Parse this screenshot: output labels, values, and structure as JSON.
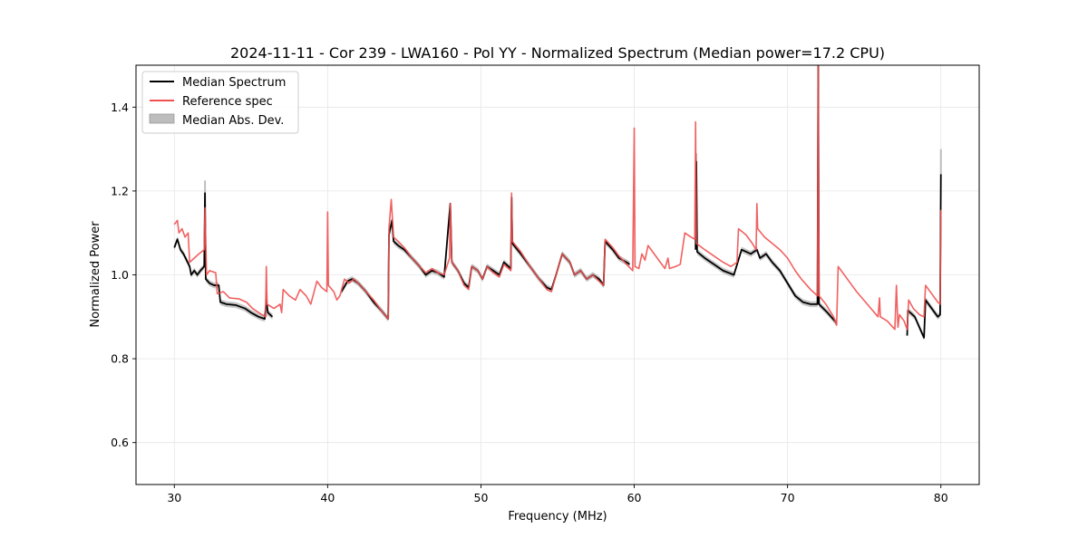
{
  "chart_data": {
    "type": "line",
    "title": "2024-11-11 - Cor 239 - LWA160 - Pol YY - Normalized Spectrum (Median power=17.2 CPU)",
    "xlabel": "Frequency (MHz)",
    "ylabel": "Normalized Power",
    "xlim": [
      27.5,
      82.5
    ],
    "ylim": [
      0.5,
      1.5
    ],
    "xticks": [
      30,
      40,
      50,
      60,
      70,
      80
    ],
    "yticks": [
      0.6,
      0.8,
      1.0,
      1.2,
      1.4
    ],
    "xtick_labels": [
      "30",
      "40",
      "50",
      "60",
      "70",
      "80"
    ],
    "ytick_labels": [
      "0.6",
      "0.8",
      "1.0",
      "1.2",
      "1.4"
    ],
    "grid": true,
    "legend_position": "top-left",
    "legend": [
      "Median Spectrum",
      "Reference spec",
      "Median Abs. Dev."
    ],
    "colors": {
      "median": "#000000",
      "reference": "#f05050",
      "overlap": "#800000",
      "mad": "#bdbdbd"
    },
    "series": [
      {
        "name": "Median Spectrum",
        "segments": [
          [
            [
              30.0,
              1.065
            ],
            [
              30.2,
              1.085
            ],
            [
              30.4,
              1.06
            ],
            [
              30.6,
              1.05
            ],
            [
              30.8,
              1.035
            ],
            [
              31.0,
              1.02
            ],
            [
              31.1,
              1.0
            ],
            [
              31.3,
              1.01
            ],
            [
              31.5,
              1.0
            ],
            [
              31.7,
              1.01
            ],
            [
              31.95,
              1.02
            ],
            [
              32.0,
              1.195
            ],
            [
              32.05,
              0.99
            ],
            [
              32.3,
              0.98
            ],
            [
              32.6,
              0.975
            ],
            [
              32.9,
              0.975
            ],
            [
              33.0,
              0.935
            ],
            [
              33.4,
              0.93
            ],
            [
              34.0,
              0.928
            ],
            [
              34.6,
              0.92
            ],
            [
              35.0,
              0.91
            ],
            [
              35.5,
              0.9
            ],
            [
              35.9,
              0.895
            ],
            [
              36.0,
              0.94
            ],
            [
              36.1,
              0.91
            ],
            [
              36.4,
              0.9
            ]
          ],
          [
            [
              40.9,
              0.96
            ],
            [
              41.3,
              0.985
            ],
            [
              41.6,
              0.99
            ],
            [
              42.0,
              0.98
            ],
            [
              42.5,
              0.96
            ],
            [
              43.0,
              0.935
            ],
            [
              43.5,
              0.915
            ],
            [
              43.95,
              0.895
            ],
            [
              44.0,
              1.095
            ],
            [
              44.2,
              1.13
            ],
            [
              44.3,
              1.08
            ],
            [
              44.6,
              1.07
            ],
            [
              45.0,
              1.06
            ],
            [
              45.5,
              1.04
            ],
            [
              46.0,
              1.02
            ],
            [
              46.4,
              1.0
            ],
            [
              46.8,
              1.01
            ],
            [
              47.2,
              1.005
            ],
            [
              47.6,
              0.995
            ],
            [
              48.0,
              1.17
            ],
            [
              48.1,
              1.03
            ],
            [
              48.5,
              1.01
            ],
            [
              48.9,
              0.98
            ],
            [
              49.2,
              0.97
            ],
            [
              49.4,
              1.02
            ],
            [
              49.8,
              1.01
            ],
            [
              50.1,
              0.99
            ],
            [
              50.4,
              1.02
            ],
            [
              50.8,
              1.01
            ],
            [
              51.2,
              1.0
            ],
            [
              51.5,
              1.03
            ],
            [
              51.95,
              1.015
            ],
            [
              52.0,
              1.185
            ],
            [
              52.05,
              1.075
            ],
            [
              52.6,
              1.05
            ],
            [
              53.2,
              1.02
            ],
            [
              53.8,
              0.99
            ],
            [
              54.3,
              0.97
            ],
            [
              54.6,
              0.965
            ],
            [
              54.9,
              1.0
            ],
            [
              55.3,
              1.05
            ],
            [
              55.8,
              1.03
            ],
            [
              56.1,
              1.0
            ],
            [
              56.5,
              1.01
            ],
            [
              56.9,
              0.99
            ],
            [
              57.3,
              1.0
            ],
            [
              57.7,
              0.99
            ],
            [
              58.0,
              0.975
            ],
            [
              58.1,
              1.08
            ],
            [
              58.6,
              1.06
            ],
            [
              59.0,
              1.04
            ],
            [
              59.5,
              1.03
            ],
            [
              59.7,
              1.025
            ]
          ],
          [
            [
              64.0,
              1.06
            ],
            [
              64.05,
              1.27
            ],
            [
              64.1,
              1.055
            ],
            [
              64.6,
              1.04
            ],
            [
              65.2,
              1.025
            ],
            [
              65.8,
              1.01
            ],
            [
              66.5,
              1.0
            ],
            [
              67.0,
              1.06
            ],
            [
              67.6,
              1.05
            ],
            [
              68.0,
              1.06
            ],
            [
              68.2,
              1.04
            ],
            [
              68.6,
              1.05
            ],
            [
              69.0,
              1.03
            ],
            [
              69.5,
              1.01
            ],
            [
              70.0,
              0.98
            ],
            [
              70.5,
              0.95
            ],
            [
              71.0,
              0.935
            ],
            [
              71.5,
              0.93
            ],
            [
              71.95,
              0.93
            ],
            [
              72.0,
              1.5
            ],
            [
              72.05,
              0.93
            ],
            [
              72.6,
              0.91
            ],
            [
              73.2,
              0.885
            ]
          ],
          [
            [
              77.8,
              0.855
            ],
            [
              77.85,
              0.915
            ],
            [
              78.3,
              0.9
            ],
            [
              78.9,
              0.85
            ],
            [
              79.0,
              0.94
            ],
            [
              79.4,
              0.92
            ],
            [
              79.8,
              0.9
            ],
            [
              79.95,
              0.905
            ],
            [
              80.0,
              1.24
            ]
          ]
        ]
      },
      {
        "name": "Reference spec",
        "segments": [
          [
            [
              30.0,
              1.12
            ],
            [
              30.2,
              1.13
            ],
            [
              30.3,
              1.1
            ],
            [
              30.5,
              1.11
            ],
            [
              30.7,
              1.09
            ],
            [
              30.9,
              1.1
            ],
            [
              31.0,
              1.03
            ],
            [
              31.3,
              1.04
            ],
            [
              31.6,
              1.05
            ],
            [
              31.95,
              1.06
            ],
            [
              32.0,
              1.16
            ],
            [
              32.1,
              1.0
            ],
            [
              32.3,
              1.01
            ],
            [
              32.7,
              1.005
            ],
            [
              32.8,
              0.955
            ],
            [
              33.2,
              0.96
            ],
            [
              33.6,
              0.945
            ],
            [
              34.2,
              0.943
            ],
            [
              34.7,
              0.935
            ],
            [
              35.1,
              0.92
            ],
            [
              35.5,
              0.91
            ],
            [
              35.95,
              0.9
            ],
            [
              36.0,
              1.02
            ],
            [
              36.05,
              0.93
            ],
            [
              36.5,
              0.92
            ],
            [
              36.9,
              0.93
            ],
            [
              37.0,
              0.91
            ],
            [
              37.1,
              0.965
            ],
            [
              37.5,
              0.95
            ],
            [
              37.9,
              0.94
            ],
            [
              38.2,
              0.965
            ],
            [
              38.6,
              0.95
            ],
            [
              38.9,
              0.93
            ],
            [
              39.3,
              0.985
            ],
            [
              39.6,
              0.97
            ],
            [
              39.95,
              0.96
            ],
            [
              40.0,
              1.15
            ],
            [
              40.05,
              0.975
            ],
            [
              40.4,
              0.96
            ],
            [
              40.6,
              0.94
            ],
            [
              40.8,
              0.95
            ],
            [
              41.1,
              0.99
            ],
            [
              41.4,
              0.98
            ],
            [
              41.7,
              0.99
            ],
            [
              42.0,
              0.98
            ],
            [
              42.5,
              0.96
            ],
            [
              43.0,
              0.94
            ],
            [
              43.5,
              0.915
            ],
            [
              43.95,
              0.895
            ],
            [
              44.0,
              1.11
            ],
            [
              44.15,
              1.18
            ],
            [
              44.3,
              1.09
            ],
            [
              44.6,
              1.08
            ],
            [
              45.0,
              1.065
            ],
            [
              45.5,
              1.04
            ],
            [
              46.0,
              1.02
            ],
            [
              46.4,
              1.005
            ],
            [
              46.8,
              1.015
            ],
            [
              47.2,
              1.005
            ],
            [
              47.6,
              1.0
            ],
            [
              47.95,
              1.04
            ],
            [
              48.0,
              1.17
            ],
            [
              48.1,
              1.03
            ],
            [
              48.5,
              1.01
            ],
            [
              48.9,
              0.975
            ],
            [
              49.2,
              0.965
            ],
            [
              49.4,
              1.02
            ],
            [
              49.8,
              1.01
            ],
            [
              50.1,
              0.99
            ],
            [
              50.4,
              1.02
            ],
            [
              50.8,
              1.005
            ],
            [
              51.2,
              0.995
            ],
            [
              51.5,
              1.025
            ],
            [
              51.95,
              1.01
            ],
            [
              52.0,
              1.195
            ],
            [
              52.05,
              1.08
            ],
            [
              52.6,
              1.055
            ],
            [
              53.2,
              1.02
            ],
            [
              53.8,
              0.99
            ],
            [
              54.3,
              0.965
            ],
            [
              54.6,
              0.96
            ],
            [
              54.9,
              1.0
            ],
            [
              55.3,
              1.05
            ],
            [
              55.8,
              1.03
            ],
            [
              56.1,
              1.0
            ],
            [
              56.5,
              1.01
            ],
            [
              56.9,
              0.99
            ],
            [
              57.3,
              1.0
            ],
            [
              57.7,
              0.985
            ],
            [
              58.0,
              0.975
            ],
            [
              58.1,
              1.085
            ],
            [
              58.6,
              1.065
            ],
            [
              59.0,
              1.045
            ],
            [
              59.5,
              1.025
            ],
            [
              59.9,
              1.01
            ],
            [
              60.0,
              1.35
            ],
            [
              60.05,
              1.02
            ],
            [
              60.3,
              1.015
            ],
            [
              60.5,
              1.05
            ],
            [
              60.7,
              1.035
            ],
            [
              60.9,
              1.07
            ],
            [
              61.3,
              1.05
            ],
            [
              61.7,
              1.03
            ],
            [
              62.0,
              1.015
            ],
            [
              62.2,
              1.04
            ],
            [
              62.3,
              1.015
            ],
            [
              62.7,
              1.02
            ],
            [
              63.0,
              1.025
            ],
            [
              63.3,
              1.1
            ],
            [
              63.7,
              1.09
            ],
            [
              63.95,
              1.085
            ],
            [
              64.0,
              1.365
            ],
            [
              64.05,
              1.075
            ],
            [
              64.6,
              1.06
            ],
            [
              65.2,
              1.045
            ],
            [
              65.8,
              1.03
            ],
            [
              66.3,
              1.02
            ],
            [
              66.7,
              1.03
            ],
            [
              66.8,
              1.11
            ],
            [
              67.3,
              1.095
            ],
            [
              67.7,
              1.075
            ],
            [
              67.95,
              1.06
            ],
            [
              68.0,
              1.17
            ],
            [
              68.05,
              1.11
            ],
            [
              68.5,
              1.09
            ],
            [
              69.0,
              1.075
            ],
            [
              69.5,
              1.06
            ],
            [
              70.0,
              1.04
            ],
            [
              70.5,
              1.01
            ],
            [
              70.9,
              0.99
            ],
            [
              71.5,
              0.965
            ],
            [
              71.95,
              0.95
            ],
            [
              72.0,
              1.5
            ],
            [
              72.05,
              0.95
            ],
            [
              72.5,
              0.93
            ],
            [
              73.0,
              0.9
            ],
            [
              73.2,
              0.88
            ],
            [
              73.3,
              1.02
            ],
            [
              73.8,
              0.995
            ],
            [
              74.5,
              0.96
            ],
            [
              75.2,
              0.93
            ],
            [
              75.9,
              0.9
            ],
            [
              76.0,
              0.945
            ],
            [
              76.05,
              0.9
            ],
            [
              76.5,
              0.89
            ],
            [
              77.0,
              0.87
            ],
            [
              77.1,
              0.975
            ],
            [
              77.2,
              0.875
            ],
            [
              77.3,
              0.905
            ],
            [
              77.6,
              0.89
            ],
            [
              77.8,
              0.87
            ],
            [
              77.9,
              0.94
            ],
            [
              78.2,
              0.92
            ],
            [
              78.6,
              0.905
            ],
            [
              78.9,
              0.9
            ],
            [
              79.0,
              0.975
            ],
            [
              79.4,
              0.955
            ],
            [
              79.8,
              0.935
            ],
            [
              79.95,
              0.93
            ],
            [
              80.0,
              1.155
            ]
          ]
        ]
      }
    ],
    "mad_band_halfwidth": 0.007,
    "mad_spikes": [
      [
        32.0,
        1.225
      ],
      [
        36.0,
        0.96
      ],
      [
        64.05,
        1.29
      ],
      [
        80.0,
        1.3
      ]
    ]
  }
}
